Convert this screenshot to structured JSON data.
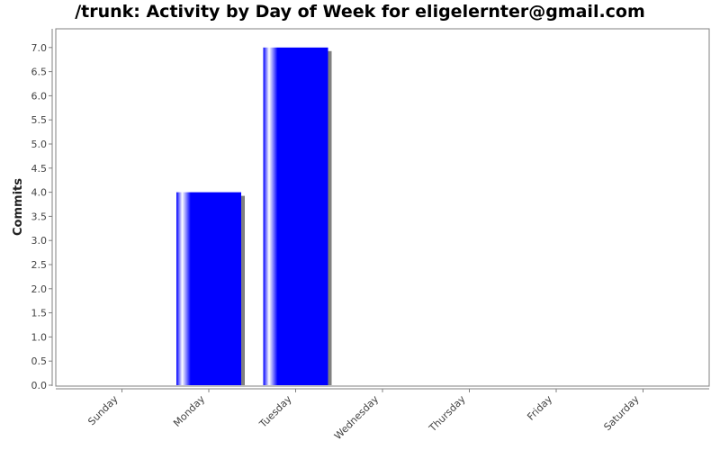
{
  "chart_data": {
    "type": "bar",
    "title": "/trunk: Activity by Day of Week for eligelernter@gmail.com",
    "xlabel": "",
    "ylabel": "Commits",
    "categories": [
      "Sunday",
      "Monday",
      "Tuesday",
      "Wednesday",
      "Thursday",
      "Friday",
      "Saturday"
    ],
    "values": [
      0,
      4,
      7,
      0,
      0,
      0,
      0
    ],
    "ylim": [
      0,
      7.35
    ],
    "yticks": [
      "0.0",
      "0.5",
      "1.0",
      "1.5",
      "2.0",
      "2.5",
      "3.0",
      "3.5",
      "4.0",
      "4.5",
      "5.0",
      "5.5",
      "6.0",
      "6.5",
      "7.0"
    ],
    "grid": false,
    "bar_color": "#0000ff",
    "shadow_color": "#808080",
    "plot_border_color": "#808080"
  }
}
